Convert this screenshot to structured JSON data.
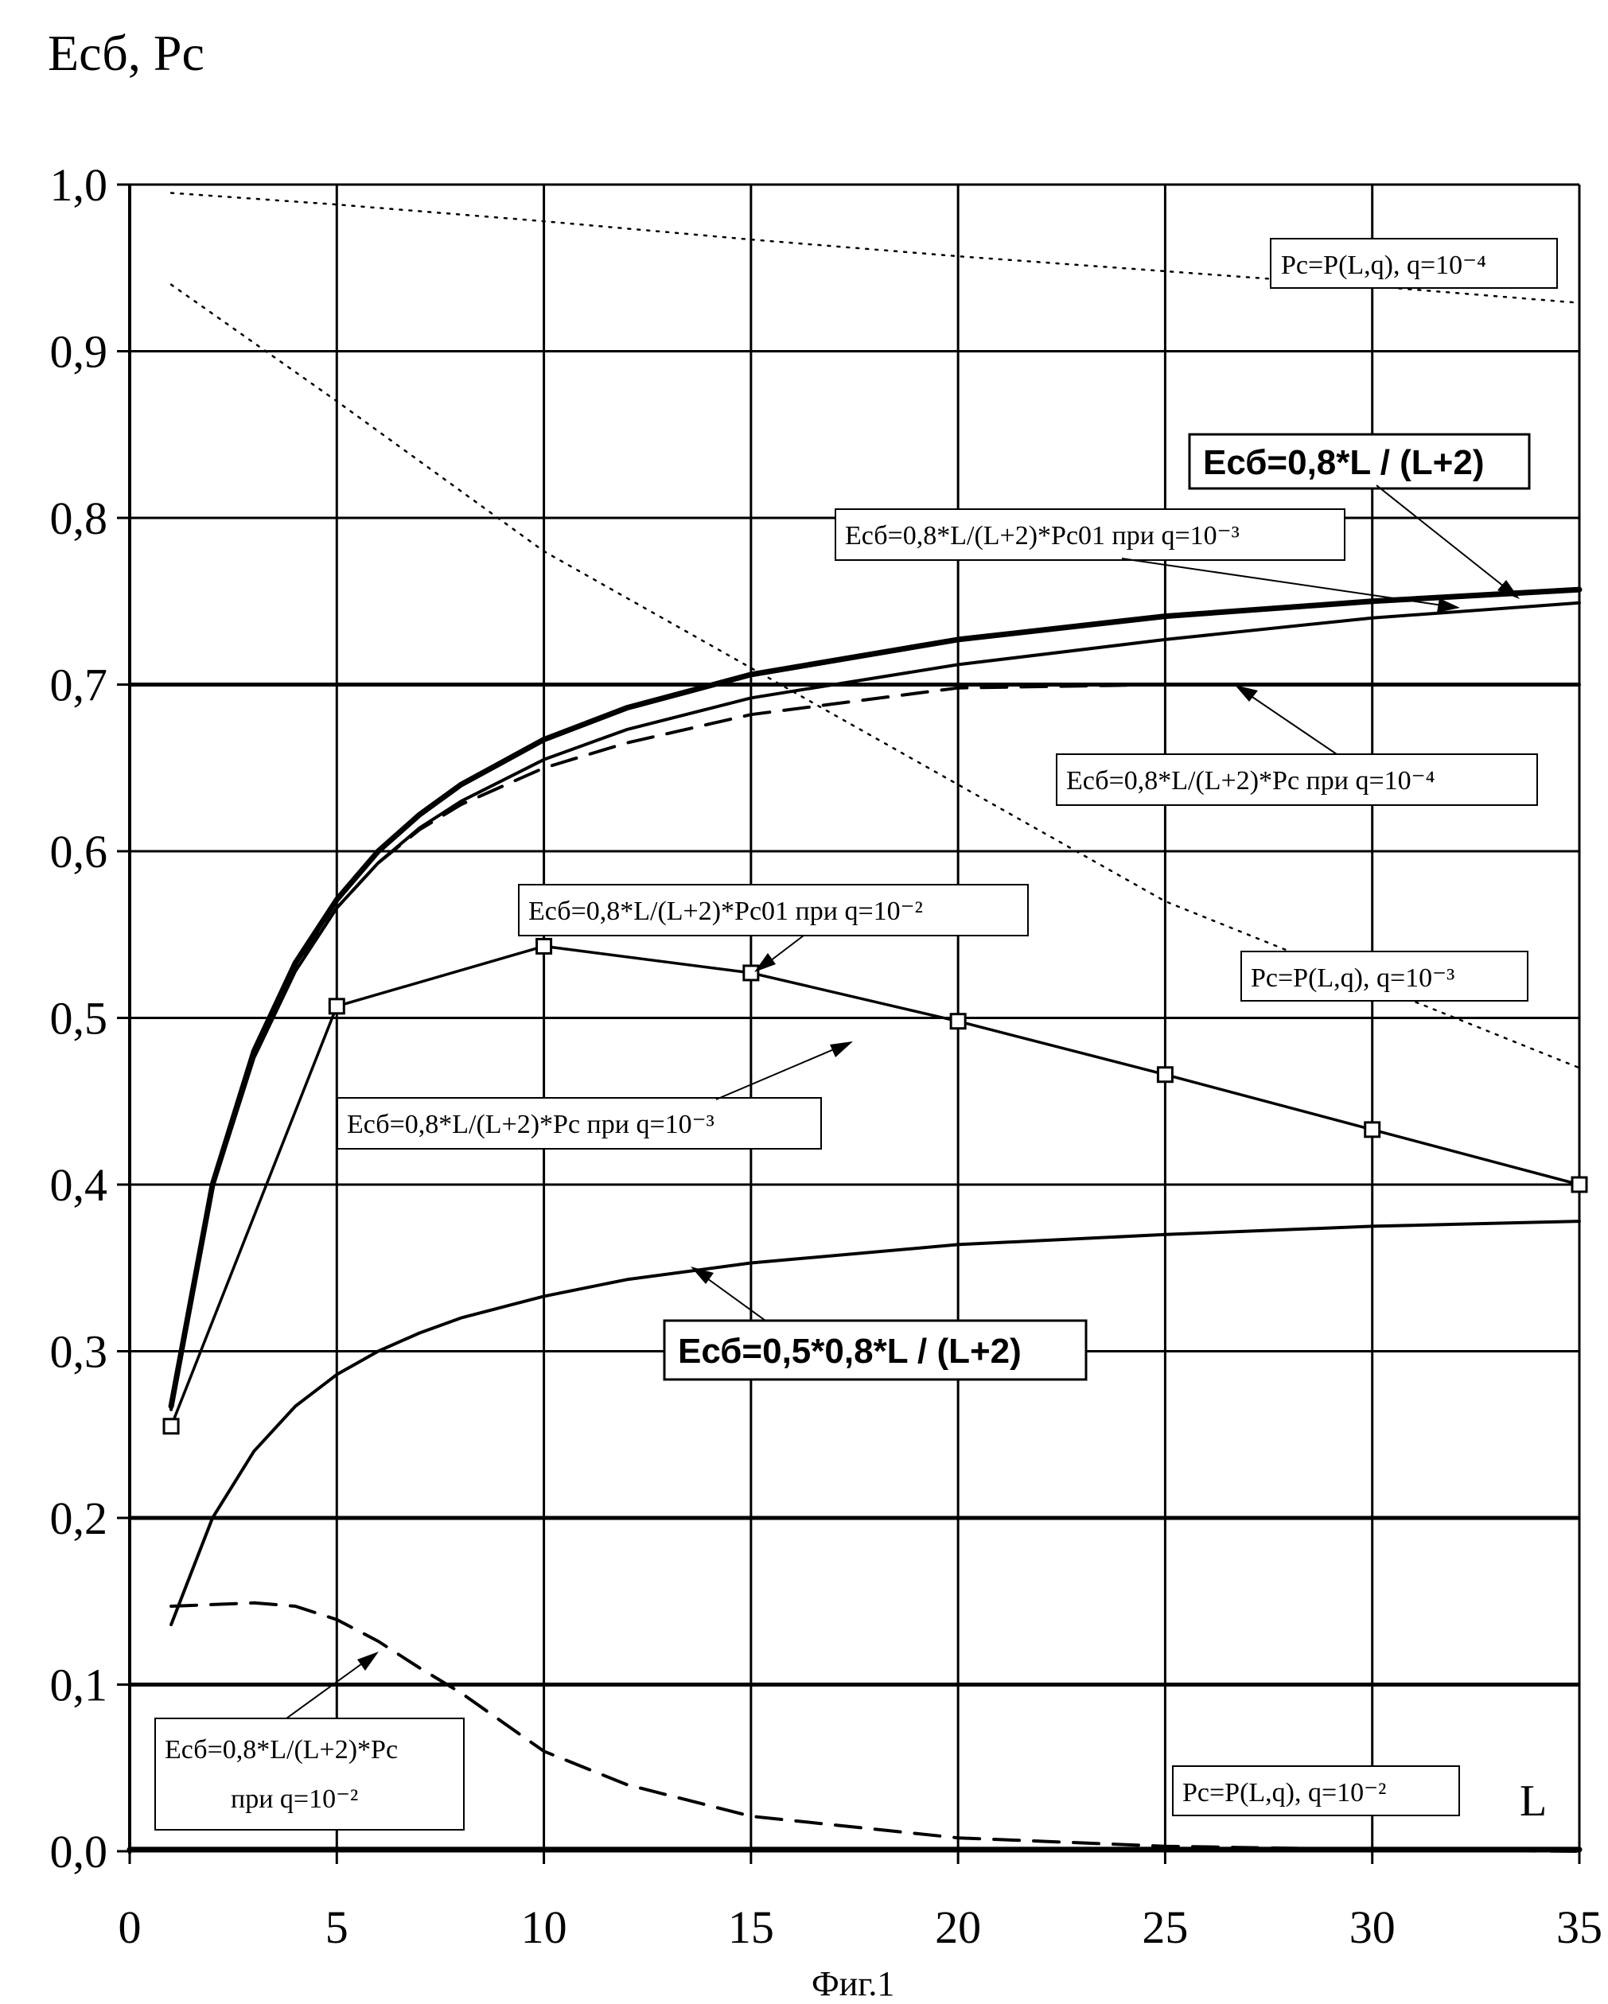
{
  "chart_data": {
    "type": "line",
    "y_axis_label": "Eсб, Pс",
    "x_axis_label": "L",
    "caption": "Фиг.1",
    "xlim": [
      0,
      35
    ],
    "ylim": [
      0,
      1.0
    ],
    "x_ticks": [
      0,
      5,
      10,
      15,
      20,
      25,
      30,
      35
    ],
    "x_tick_labels": [
      "0",
      "5",
      "10",
      "15",
      "20",
      "25",
      "30",
      "35"
    ],
    "y_ticks": [
      0,
      0.1,
      0.2,
      0.3,
      0.4,
      0.5,
      0.6,
      0.7,
      0.8,
      0.9,
      1.0
    ],
    "y_tick_labels": [
      "0,0",
      "0,1",
      "0,2",
      "0,3",
      "0,4",
      "0,5",
      "0,6",
      "0,7",
      "0,8",
      "0,9",
      "1,0"
    ],
    "grid": true,
    "series": [
      {
        "style": "dotted",
        "color": "#000000",
        "x": [
          1,
          5,
          10,
          15,
          20,
          25,
          30,
          35
        ],
        "y": [
          0.995,
          0.988,
          0.978,
          0.967,
          0.957,
          0.948,
          0.939,
          0.929
        ]
      },
      {
        "style": "dotted",
        "color": "#000000",
        "x": [
          1,
          5,
          10,
          15,
          20,
          25,
          30,
          35
        ],
        "y": [
          0.94,
          0.87,
          0.78,
          0.71,
          0.64,
          0.57,
          0.52,
          0.47
        ]
      },
      {
        "style": "bold",
        "color": "#000000",
        "x": [
          1,
          2,
          3,
          4,
          5,
          6,
          7,
          8,
          10,
          12,
          15,
          20,
          25,
          30,
          35
        ],
        "y": [
          0.267,
          0.4,
          0.48,
          0.533,
          0.571,
          0.6,
          0.622,
          0.64,
          0.667,
          0.686,
          0.706,
          0.727,
          0.741,
          0.75,
          0.757
        ]
      },
      {
        "style": "solid",
        "color": "#000000",
        "x": [
          1,
          2,
          3,
          4,
          5,
          6,
          7,
          8,
          10,
          12,
          15,
          20,
          25,
          30,
          35
        ],
        "y": [
          0.266,
          0.398,
          0.476,
          0.528,
          0.566,
          0.593,
          0.614,
          0.63,
          0.655,
          0.673,
          0.692,
          0.712,
          0.727,
          0.74,
          0.749
        ]
      },
      {
        "style": "dashed",
        "color": "#000000",
        "x": [
          1,
          2,
          3,
          4,
          5,
          6,
          7,
          8,
          10,
          12,
          15,
          20,
          25,
          30,
          35
        ],
        "y": [
          0.265,
          0.398,
          0.477,
          0.529,
          0.566,
          0.593,
          0.613,
          0.628,
          0.65,
          0.665,
          0.682,
          0.698,
          0.7,
          0.7,
          0.7
        ]
      },
      {
        "style": "solid-marker",
        "color": "#000000",
        "marker": "square",
        "x": [
          1,
          5,
          10,
          15,
          20,
          25,
          30,
          35
        ],
        "y": [
          0.255,
          0.507,
          0.543,
          0.527,
          0.498,
          0.466,
          0.433,
          0.4
        ]
      },
      {
        "style": "solid",
        "color": "#000000",
        "x": [
          1,
          2,
          3,
          4,
          5,
          6,
          7,
          8,
          10,
          12,
          15,
          20,
          25,
          30,
          35
        ],
        "y": [
          0.136,
          0.2,
          0.24,
          0.267,
          0.286,
          0.3,
          0.311,
          0.32,
          0.333,
          0.343,
          0.353,
          0.364,
          0.37,
          0.375,
          0.378
        ]
      },
      {
        "style": "dashed",
        "color": "#000000",
        "x": [
          1,
          2,
          3,
          4,
          5,
          6,
          7,
          8,
          10,
          12,
          15,
          20,
          25,
          30,
          35
        ],
        "y": [
          0.147,
          0.148,
          0.149,
          0.147,
          0.139,
          0.126,
          0.11,
          0.095,
          0.06,
          0.04,
          0.021,
          0.008,
          0.003,
          0.001,
          0.0
        ]
      },
      {
        "style": "bold",
        "color": "#000000",
        "x": [
          0,
          35
        ],
        "y": [
          0.001,
          0.001
        ]
      }
    ],
    "annotations": [
      {
        "text": "Pс=P(L,q),  q=10⁻⁴"
      },
      {
        "text": "Eсб=0,8*L / (L+2)"
      },
      {
        "text": "Eсб=0,8*L/(L+2)*Pс01 при q=10⁻³"
      },
      {
        "text": "Eсб=0,8*L/(L+2)*Pс при q=10⁻⁴"
      },
      {
        "text": "Eсб=0,8*L/(L+2)*Pс01 при q=10⁻²"
      },
      {
        "text": "Pс=P(L,q),  q=10⁻³"
      },
      {
        "text": "Eсб=0,8*L/(L+2)*Pс при q=10⁻³"
      },
      {
        "text": "Eсб=0,5*0,8*L / (L+2)"
      },
      {
        "text": "Eсб=0,8*L/(L+2)*Pс"
      },
      {
        "text": "при q=10⁻²"
      },
      {
        "text": "Pс=P(L,q),  q=10⁻²"
      }
    ]
  }
}
